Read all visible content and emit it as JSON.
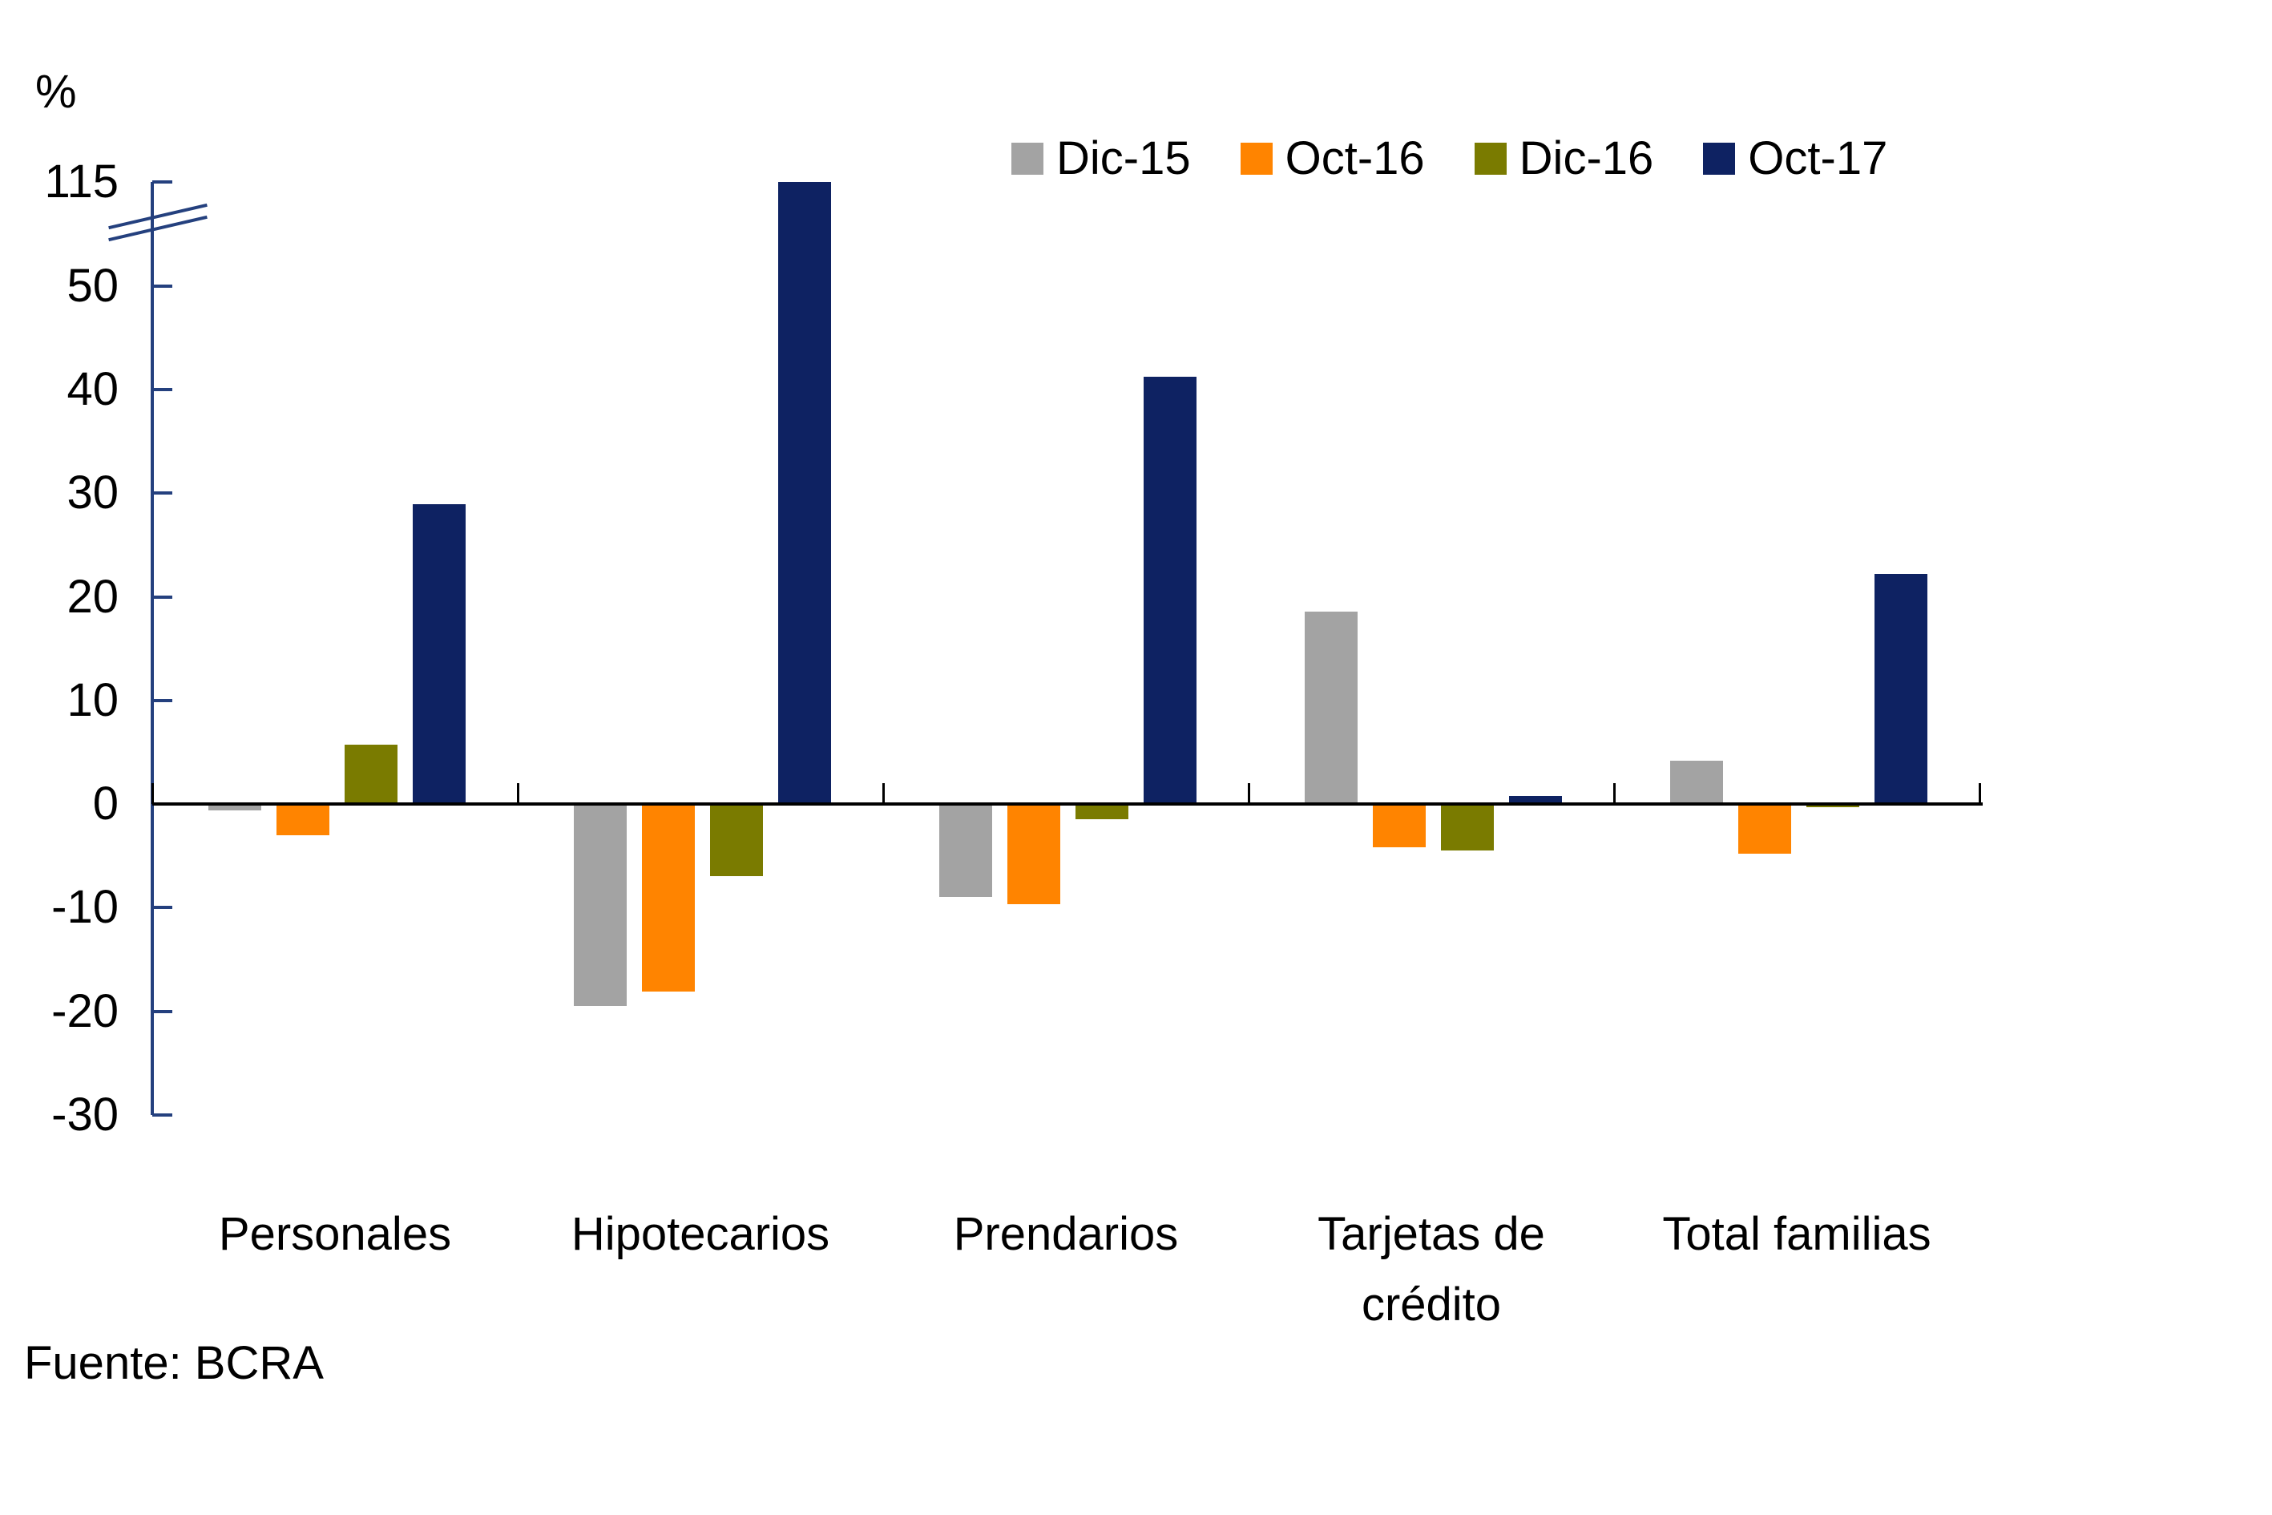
{
  "chart_data": {
    "type": "bar",
    "title": "",
    "unit_label": "%",
    "categories": [
      "Personales",
      "Hipotecarios",
      "Prendarios",
      "Tarjetas de crédito",
      "Total familias"
    ],
    "series": [
      {
        "name": "Dic-15",
        "color": "#a3a3a3",
        "values": [
          -0.6,
          -19.5,
          -9.0,
          18.6,
          4.2
        ]
      },
      {
        "name": "Oct-16",
        "color": "#ff8400",
        "values": [
          -3.0,
          -18.1,
          -9.7,
          -4.2,
          -4.8
        ]
      },
      {
        "name": "Dic-16",
        "color": "#7a7b00",
        "values": [
          5.7,
          -7.0,
          -1.5,
          -4.5,
          -0.3
        ]
      },
      {
        "name": "Oct-17",
        "color": "#0e2262",
        "values": [
          28.9,
          115,
          41.2,
          0.8,
          22.2
        ]
      }
    ],
    "y_axis": {
      "ticks": [
        115,
        50,
        40,
        30,
        20,
        10,
        0,
        -10,
        -20,
        -30
      ],
      "break_between": [
        50,
        115
      ],
      "linear_range": [
        -30,
        50
      ],
      "unit": "%"
    },
    "legend_position": "top-right",
    "grid": false
  },
  "source_note": "Fuente: BCRA",
  "colors": {
    "axis": "#24407e",
    "text": "#000000",
    "background": "#ffffff"
  }
}
